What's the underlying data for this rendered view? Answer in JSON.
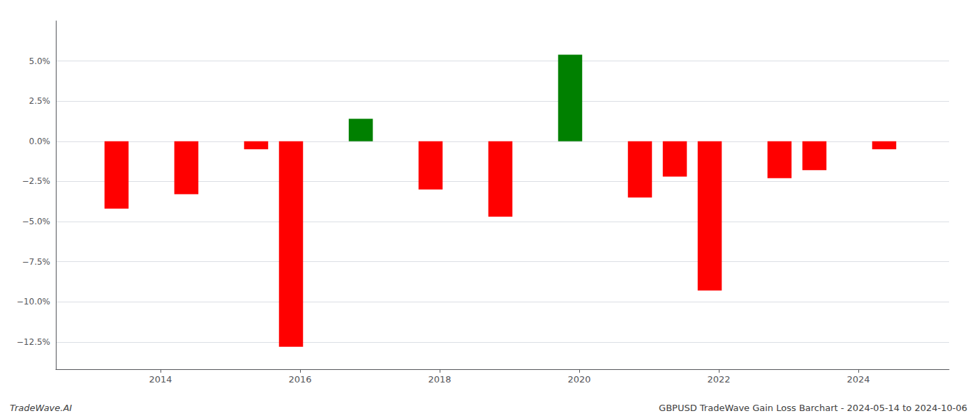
{
  "chart_data": {
    "type": "bar",
    "x": [
      2013.37,
      2014.37,
      2015.37,
      2015.87,
      2016.87,
      2017.87,
      2018.87,
      2019.87,
      2020.87,
      2021.37,
      2021.87,
      2022.87,
      2023.37,
      2024.37
    ],
    "values": [
      -4.2,
      -3.3,
      -0.5,
      -12.8,
      1.4,
      -3.0,
      -4.7,
      5.4,
      -3.5,
      -2.2,
      -9.3,
      -2.3,
      -1.8,
      -0.5
    ],
    "colors": [
      "#ff0000",
      "#ff0000",
      "#ff0000",
      "#ff0000",
      "#008000",
      "#ff0000",
      "#ff0000",
      "#008000",
      "#ff0000",
      "#ff0000",
      "#ff0000",
      "#ff0000",
      "#ff0000",
      "#ff0000"
    ],
    "xlim": [
      2012.5,
      2025.3
    ],
    "xticks": [
      2014,
      2016,
      2018,
      2020,
      2022,
      2024
    ],
    "ylim": [
      -14.2,
      7.5
    ],
    "yticks": [
      {
        "value": 5.0,
        "label": "5.0%"
      },
      {
        "value": 2.5,
        "label": "2.5%"
      },
      {
        "value": 0.0,
        "label": "0.0%"
      },
      {
        "value": -2.5,
        "label": "−2.5%"
      },
      {
        "value": -5.0,
        "label": "−5.0%"
      },
      {
        "value": -7.5,
        "label": "−7.5%"
      },
      {
        "value": -10.0,
        "label": "−10.0%"
      },
      {
        "value": -12.5,
        "label": "−12.5%"
      }
    ],
    "grid": true,
    "annotations": [
      "TradeWave.AI",
      "GBPUSD TradeWave Gain Loss Barchart - 2024-05-14 to 2024-10-06"
    ]
  }
}
